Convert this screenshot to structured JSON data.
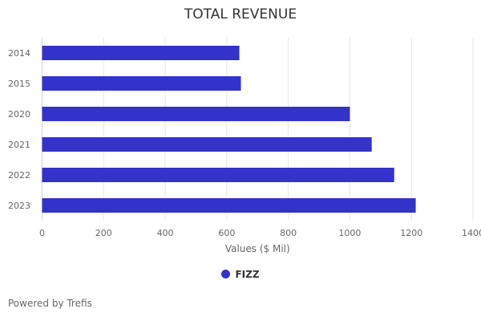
{
  "chart_data": {
    "type": "bar",
    "orientation": "horizontal",
    "title": "TOTAL REVENUE",
    "xlabel": "Values ($ Mil)",
    "ylabel": "",
    "categories": [
      "2014",
      "2015",
      "2020",
      "2021",
      "2022",
      "2023"
    ],
    "series": [
      {
        "name": "FIZZ",
        "values": [
          641,
          646,
          1000,
          1071,
          1144,
          1214
        ],
        "color": "#3333cc"
      }
    ],
    "xlim": [
      0,
      1400
    ],
    "xticks": [
      "0",
      "200",
      "400",
      "600",
      "800",
      "1000",
      "1200",
      "1400"
    ],
    "grid": true,
    "legend": "bottom"
  },
  "credit": "Powered by Trefis"
}
